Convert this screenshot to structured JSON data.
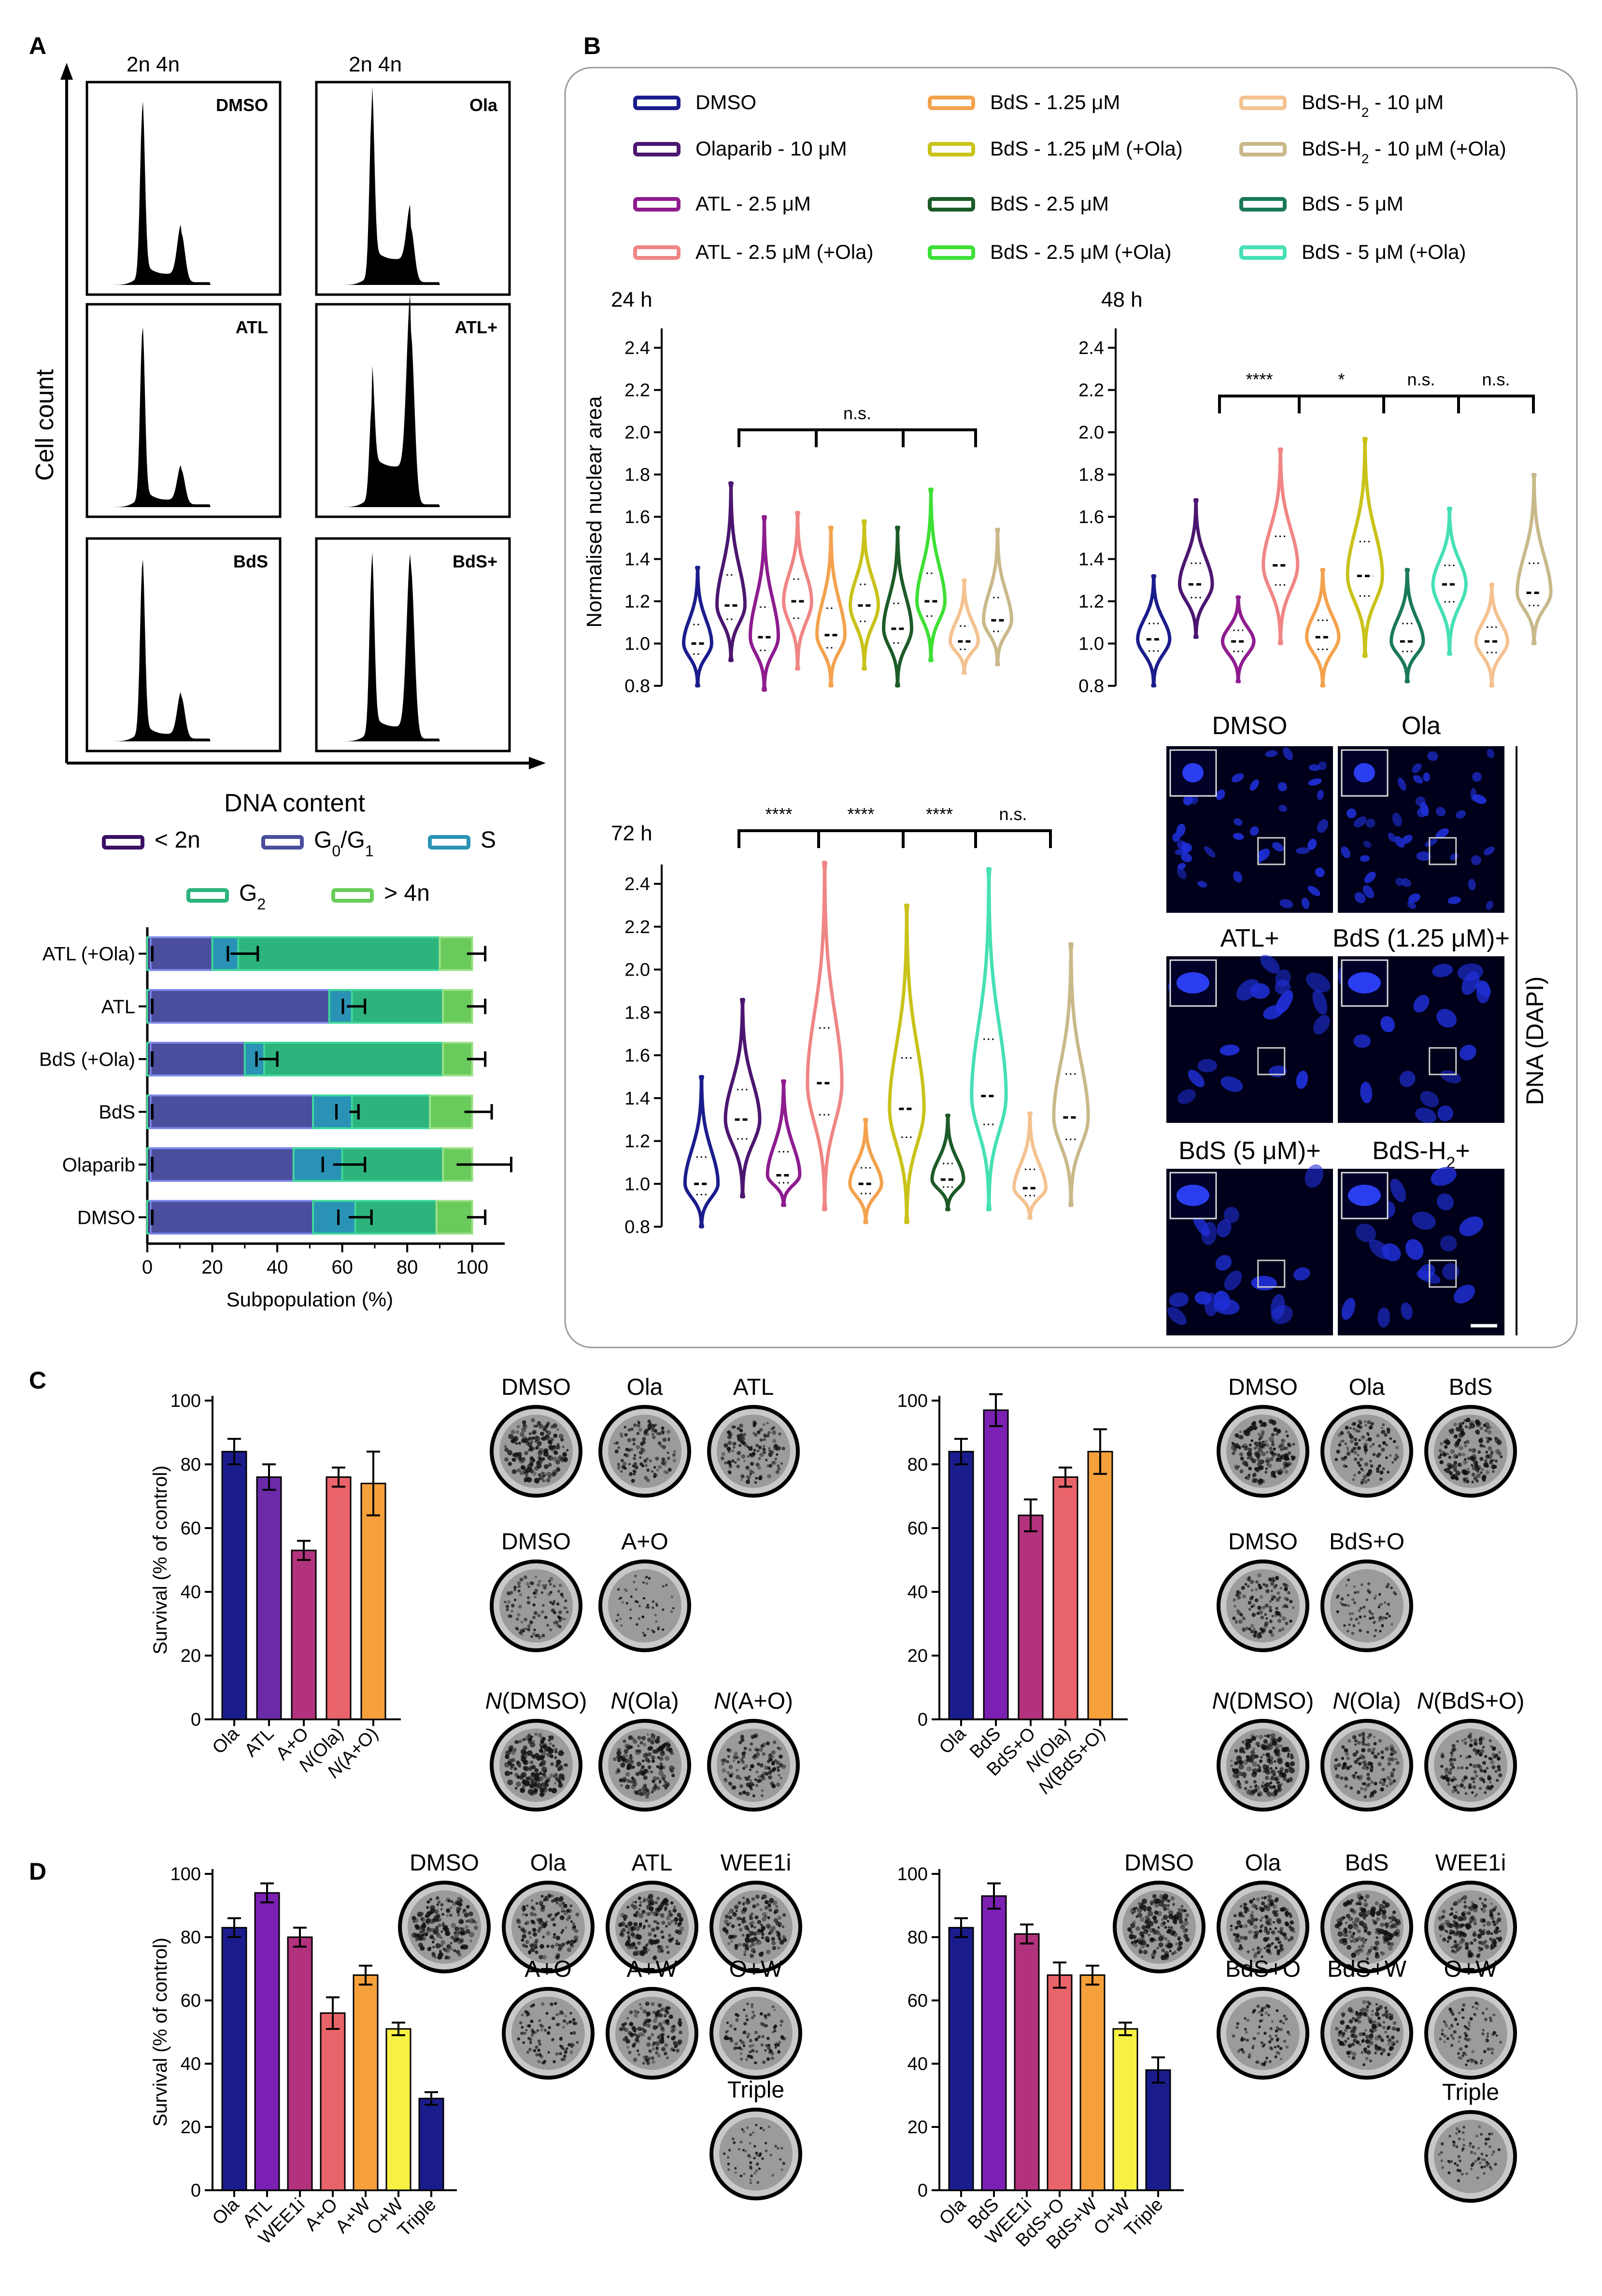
{
  "panels": {
    "A": "A",
    "B": "B",
    "C": "C",
    "D": "D"
  },
  "panelA": {
    "ploidy_headers": [
      "2n   4n",
      "2n   4n"
    ],
    "hist_labels": [
      "DMSO",
      "Ola",
      "ATL",
      "ATL+",
      "BdS",
      "BdS+"
    ],
    "ylabel": "Cell count",
    "xlabel": "DNA content"
  },
  "phase_legend": [
    "< 2n",
    "G0/G1",
    "S",
    "G2",
    "> 4n"
  ],
  "phase_colors": [
    "#3b1063",
    "#4a4e9c",
    "#2a93b5",
    "#2db37c",
    "#69cc5a"
  ],
  "chart_data": [
    {
      "type": "bar",
      "orientation": "horizontal",
      "stacked": true,
      "categories": [
        "ATL (+Ola)",
        "ATL",
        "BdS (+Ola)",
        "BdS",
        "Olaparib",
        "DMSO"
      ],
      "series": [
        {
          "name": "< 2n",
          "values": [
            1,
            1,
            1,
            1,
            1,
            1
          ]
        },
        {
          "name": "G0/G1",
          "values": [
            19,
            55,
            29,
            50,
            44,
            50
          ]
        },
        {
          "name": "S",
          "values": [
            8,
            7,
            6,
            12,
            15,
            13
          ]
        },
        {
          "name": "G2",
          "values": [
            62,
            28,
            55,
            24,
            31,
            25
          ]
        },
        {
          "name": "> 4n",
          "values": [
            10,
            9,
            9,
            13,
            9,
            11
          ]
        }
      ],
      "xlabel": "Subpopulation (%)",
      "xticks": [
        0,
        20,
        40,
        60,
        80,
        100
      ],
      "xlim": [
        0,
        110
      ]
    },
    {
      "type": "violin",
      "legend": [
        {
          "name": "DMSO",
          "color": "#1b1c8c"
        },
        {
          "name": "Olaparib - 10 μM",
          "color": "#4b1670"
        },
        {
          "name": "ATL - 2.5 μM",
          "color": "#8e1c8f"
        },
        {
          "name": "ATL - 2.5 μM (+Ola)",
          "color": "#f08585"
        },
        {
          "name": "BdS - 1.25 μM",
          "color": "#f3a24e"
        },
        {
          "name": "BdS - 1.25 μM (+Ola)",
          "color": "#c9c21a"
        },
        {
          "name": "BdS - 2.5 μM",
          "color": "#1c5b28"
        },
        {
          "name": "BdS - 2.5 μM (+Ola)",
          "color": "#3de034"
        },
        {
          "name": "BdS-H2 - 10 μM",
          "color": "#f4c290"
        },
        {
          "name": "BdS-H2 - 10 μM (+Ola)",
          "color": "#c9b98a"
        },
        {
          "name": "BdS - 5 μM",
          "color": "#1a7a56"
        },
        {
          "name": "BdS - 5 μM (+Ola)",
          "color": "#45e0b4"
        }
      ],
      "ylabel": "Normalised nuclear area",
      "yticks": [
        0.8,
        1.0,
        1.2,
        1.4,
        1.6,
        1.8,
        2.0,
        2.2,
        2.4
      ],
      "subplots": [
        {
          "title": "24 h",
          "groups": [
            "DMSO",
            "Olaparib - 10 μM",
            "ATL - 2.5 μM",
            "ATL - 2.5 μM (+Ola)",
            "BdS - 1.25 μM",
            "BdS - 1.25 μM (+Ola)",
            "BdS - 2.5 μM",
            "BdS - 2.5 μM (+Ola)",
            "BdS-H2 - 10 μM",
            "BdS-H2 - 10 μM (+Ola)"
          ],
          "median": [
            1.0,
            1.18,
            1.03,
            1.2,
            1.04,
            1.18,
            1.07,
            1.2,
            1.01,
            1.11
          ],
          "min": [
            0.8,
            0.92,
            0.78,
            0.88,
            0.8,
            0.88,
            0.8,
            0.92,
            0.86,
            0.9
          ],
          "max": [
            1.36,
            1.76,
            1.6,
            1.62,
            1.55,
            1.58,
            1.55,
            1.73,
            1.3,
            1.54
          ],
          "significance": [
            "n.s."
          ]
        },
        {
          "title": "48 h",
          "groups": [
            "DMSO",
            "Olaparib - 10 μM",
            "ATL - 2.5 μM",
            "ATL - 2.5 μM (+Ola)",
            "BdS - 1.25 μM",
            "BdS - 1.25 μM (+Ola)",
            "BdS - 5 μM",
            "BdS - 5 μM (+Ola)",
            "BdS-H2 - 10 μM",
            "BdS-H2 - 10 μM (+Ola)"
          ],
          "median": [
            1.02,
            1.28,
            1.01,
            1.37,
            1.03,
            1.32,
            1.01,
            1.28,
            1.01,
            1.24
          ],
          "min": [
            0.8,
            1.03,
            0.82,
            1.0,
            0.8,
            0.94,
            0.82,
            0.95,
            0.8,
            1.0
          ],
          "max": [
            1.32,
            1.68,
            1.22,
            1.92,
            1.35,
            1.97,
            1.35,
            1.64,
            1.28,
            1.8
          ],
          "significance": [
            "****",
            "*",
            "n.s.",
            "n.s."
          ]
        },
        {
          "title": "72 h",
          "groups": [
            "DMSO",
            "Olaparib - 10 μM",
            "ATL - 2.5 μM",
            "ATL - 2.5 μM (+Ola)",
            "BdS - 1.25 μM",
            "BdS - 1.25 μM (+Ola)",
            "BdS - 2.5 μM",
            "BdS - 5 μM (+Ola)",
            "BdS-H2 - 10 μM",
            "BdS-H2 - 10 μM (+Ola)"
          ],
          "median": [
            1.0,
            1.3,
            1.04,
            1.47,
            1.0,
            1.35,
            1.02,
            1.41,
            0.98,
            1.31
          ],
          "min": [
            0.8,
            0.94,
            0.9,
            0.88,
            0.82,
            0.82,
            0.88,
            0.88,
            0.84,
            0.9
          ],
          "max": [
            1.5,
            1.86,
            1.48,
            2.5,
            1.3,
            2.3,
            1.32,
            2.47,
            1.33,
            2.12
          ],
          "significance": [
            "****",
            "****",
            "****",
            "n.s."
          ]
        }
      ]
    },
    {
      "type": "bar",
      "panel": "C-left",
      "categories": [
        "Ola",
        "ATL",
        "A+O",
        "N(Ola)",
        "N(A+O)"
      ],
      "values": [
        84,
        76,
        53,
        76,
        74
      ],
      "errors": [
        4,
        4,
        3,
        3,
        10
      ],
      "colors": [
        "#1b1c8c",
        "#6b2aa8",
        "#b2327d",
        "#e9646a",
        "#f5a03a"
      ],
      "ylabel": "Survival (% of control)",
      "yticks": [
        0,
        20,
        40,
        60,
        80,
        100
      ],
      "ylim": [
        0,
        100
      ]
    },
    {
      "type": "bar",
      "panel": "C-right",
      "categories": [
        "Ola",
        "BdS",
        "BdS+O",
        "N(Ola)",
        "N(BdS+O)"
      ],
      "values": [
        84,
        97,
        64,
        76,
        84
      ],
      "errors": [
        4,
        5,
        5,
        3,
        7
      ],
      "colors": [
        "#1b1c8c",
        "#7b20b2",
        "#b2327d",
        "#e9646a",
        "#f5a03a"
      ],
      "yticks": [
        0,
        20,
        40,
        60,
        80,
        100
      ],
      "ylim": [
        0,
        100
      ]
    },
    {
      "type": "bar",
      "panel": "D-left",
      "categories": [
        "Ola",
        "ATL",
        "WEE1i",
        "A+O",
        "A+W",
        "O+W",
        "Triple"
      ],
      "values": [
        83,
        94,
        80,
        56,
        68,
        51,
        29
      ],
      "errors": [
        3,
        3,
        3,
        5,
        3,
        2,
        2
      ],
      "colors": [
        "#1b1c8c",
        "#7b20b2",
        "#b2327d",
        "#e9646a",
        "#f5a03a",
        "#f7f045",
        "#1b1c8c"
      ],
      "ylabel": "Survival (% of control)",
      "yticks": [
        0,
        20,
        40,
        60,
        80,
        100
      ],
      "ylim": [
        0,
        100
      ]
    },
    {
      "type": "bar",
      "panel": "D-right",
      "categories": [
        "Ola",
        "BdS",
        "WEE1i",
        "BdS+O",
        "BdS+W",
        "O+W",
        "Triple"
      ],
      "values": [
        83,
        93,
        81,
        68,
        68,
        51,
        38
      ],
      "errors": [
        3,
        4,
        3,
        4,
        3,
        2,
        4
      ],
      "colors": [
        "#1b1c8c",
        "#7b20b2",
        "#b2327d",
        "#e9646a",
        "#f5a03a",
        "#f7f045",
        "#1b1c8c"
      ],
      "yticks": [
        0,
        20,
        40,
        60,
        80,
        100
      ],
      "ylim": [
        0,
        100
      ]
    }
  ],
  "micrographs": {
    "labels": [
      "DMSO",
      "Ola",
      "ATL+",
      "BdS (1.25 μM)+",
      "BdS (5 μM)+",
      "BdS-H2+"
    ],
    "side_label": "DNA (DAPI)"
  },
  "colonies": {
    "C_left": [
      "DMSO",
      "Ola",
      "ATL",
      "DMSO",
      "A+O",
      "N(DMSO)",
      "N(Ola)",
      "N(A+O)"
    ],
    "C_right": [
      "DMSO",
      "Ola",
      "BdS",
      "DMSO",
      "BdS+O",
      "N(DMSO)",
      "N(Ola)",
      "N(BdS+O)"
    ],
    "D_left": [
      "DMSO",
      "Ola",
      "ATL",
      "WEE1i",
      "A+O",
      "A+W",
      "O+W",
      "Triple"
    ],
    "D_right": [
      "DMSO",
      "Ola",
      "BdS",
      "WEE1i",
      "BdS+O",
      "BdS+W",
      "O+W",
      "Triple"
    ]
  }
}
